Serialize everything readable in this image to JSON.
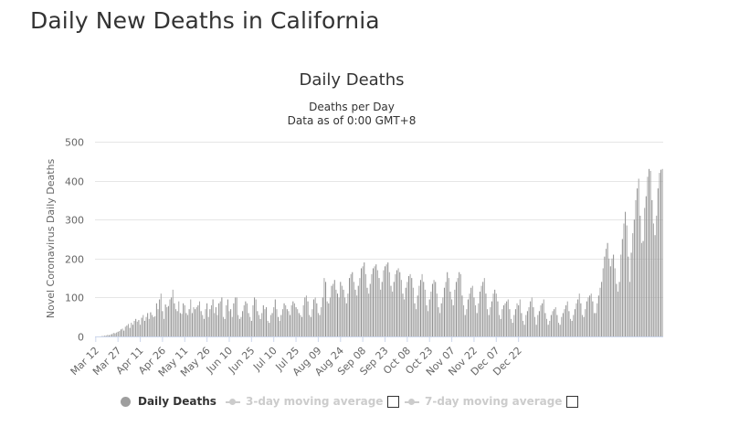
{
  "page": {
    "title": "Daily New Deaths in California"
  },
  "chart_data": {
    "type": "bar",
    "title": "Daily Deaths",
    "subtitle_lines": [
      "Deaths per Day",
      "Data as of 0:00 GMT+8"
    ],
    "ylabel": "Novel Coronavirus Daily Deaths",
    "xlabel": "",
    "ylim": [
      0,
      500
    ],
    "yticks": [
      0,
      100,
      200,
      300,
      400,
      500
    ],
    "grid": true,
    "start_date": "Mar 12",
    "x_tick_labels": [
      "Mar 12",
      "Mar 27",
      "Apr 11",
      "Apr 26",
      "May 11",
      "May 26",
      "Jun 10",
      "Jun 25",
      "Jul 10",
      "Jul 25",
      "Aug 09",
      "Aug 24",
      "Sep 08",
      "Sep 23",
      "Oct 08",
      "Oct 23",
      "Nov 07",
      "Nov 22",
      "Dec 07",
      "Dec 22"
    ],
    "series": [
      {
        "name": "Daily Deaths",
        "color": "#9e9e9e",
        "values": [
          0,
          0,
          0,
          0,
          1,
          1,
          2,
          2,
          4,
          3,
          5,
          6,
          9,
          8,
          10,
          12,
          14,
          18,
          20,
          15,
          25,
          28,
          32,
          22,
          35,
          30,
          40,
          45,
          38,
          42,
          30,
          48,
          55,
          40,
          50,
          60,
          45,
          62,
          55,
          50,
          52,
          85,
          70,
          95,
          110,
          65,
          45,
          82,
          75,
          78,
          95,
          100,
          120,
          85,
          70,
          65,
          90,
          60,
          58,
          85,
          80,
          60,
          55,
          70,
          95,
          60,
          75,
          70,
          75,
          80,
          90,
          65,
          55,
          45,
          70,
          85,
          50,
          70,
          80,
          95,
          60,
          75,
          55,
          85,
          90,
          100,
          50,
          45,
          80,
          95,
          65,
          70,
          50,
          85,
          100,
          100,
          55,
          45,
          50,
          65,
          80,
          90,
          85,
          60,
          50,
          40,
          80,
          100,
          95,
          65,
          55,
          45,
          60,
          80,
          70,
          75,
          40,
          35,
          55,
          60,
          75,
          95,
          70,
          50,
          40,
          55,
          70,
          85,
          80,
          70,
          65,
          55,
          80,
          90,
          85,
          75,
          70,
          60,
          55,
          50,
          80,
          100,
          105,
          90,
          55,
          50,
          70,
          95,
          100,
          85,
          60,
          55,
          75,
          100,
          150,
          140,
          90,
          85,
          100,
          130,
          135,
          145,
          120,
          110,
          100,
          140,
          130,
          120,
          100,
          85,
          110,
          150,
          160,
          165,
          140,
          120,
          105,
          130,
          150,
          175,
          180,
          190,
          160,
          125,
          110,
          135,
          160,
          175,
          180,
          185,
          170,
          150,
          120,
          140,
          170,
          180,
          185,
          190,
          165,
          130,
          115,
          140,
          160,
          170,
          175,
          165,
          145,
          110,
          95,
          125,
          140,
          155,
          160,
          150,
          125,
          85,
          70,
          105,
          130,
          145,
          160,
          140,
          120,
          80,
          65,
          95,
          115,
          135,
          145,
          140,
          110,
          75,
          60,
          85,
          100,
          125,
          140,
          165,
          150,
          115,
          95,
          80,
          120,
          140,
          150,
          165,
          160,
          105,
          80,
          55,
          70,
          95,
          110,
          125,
          130,
          100,
          80,
          60,
          85,
          115,
          130,
          140,
          150,
          110,
          70,
          55,
          75,
          90,
          110,
          120,
          110,
          90,
          55,
          45,
          70,
          80,
          85,
          90,
          95,
          70,
          45,
          35,
          55,
          70,
          85,
          80,
          95,
          60,
          40,
          30,
          55,
          65,
          75,
          90,
          100,
          75,
          50,
          30,
          55,
          65,
          80,
          85,
          95,
          60,
          45,
          30,
          40,
          55,
          65,
          70,
          75,
          55,
          35,
          30,
          50,
          60,
          70,
          80,
          90,
          65,
          45,
          40,
          55,
          70,
          85,
          95,
          110,
          85,
          55,
          50,
          70,
          90,
          100,
          105,
          110,
          90,
          60,
          60,
          85,
          105,
          125,
          140,
          175,
          205,
          225,
          240,
          200,
          180,
          200,
          210,
          175,
          135,
          115,
          140,
          210,
          250,
          290,
          320,
          285,
          205,
          140,
          215,
          265,
          300,
          350,
          380,
          405,
          310,
          240,
          245,
          330,
          360,
          410,
          430,
          425,
          350,
          290,
          260,
          310,
          380,
          420,
          428,
          430
        ]
      },
      {
        "name": "3-day moving average",
        "visible": false,
        "color": "#cccccc"
      },
      {
        "name": "7-day moving average",
        "visible": false,
        "color": "#cccccc"
      }
    ],
    "legend_position": "bottom"
  },
  "legend": {
    "items": [
      {
        "label": "Daily Deaths",
        "active": true
      },
      {
        "label": "3-day moving average",
        "active": false
      },
      {
        "label": "7-day moving average",
        "active": false
      }
    ]
  }
}
